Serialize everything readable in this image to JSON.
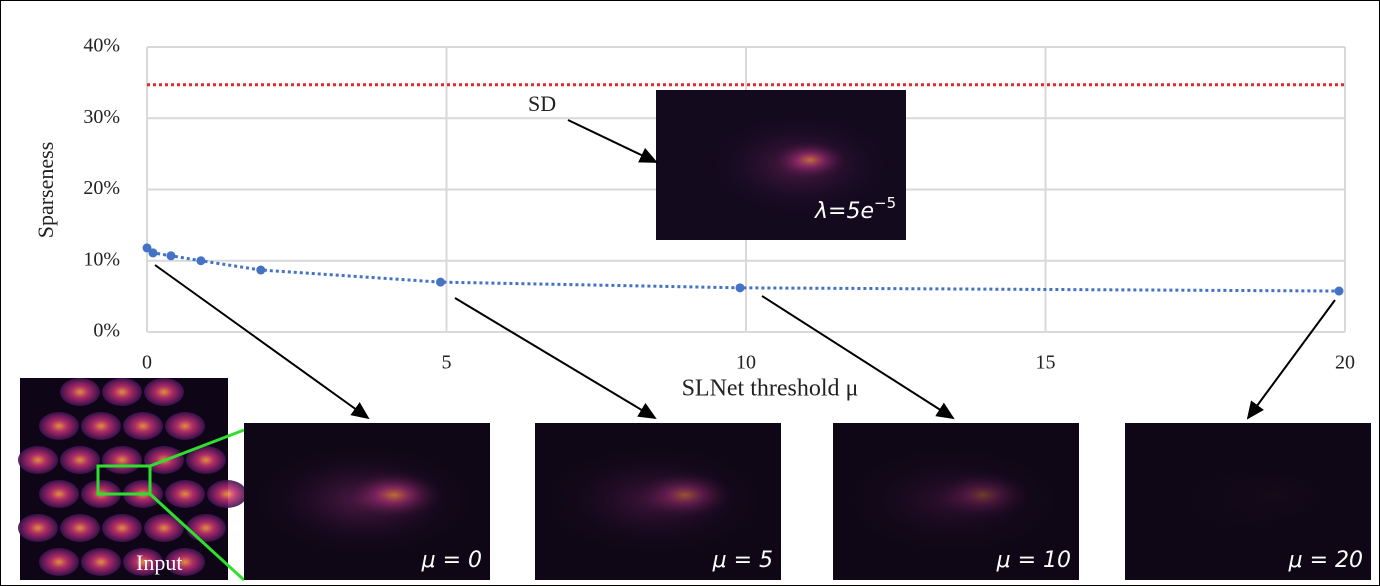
{
  "chart_data": {
    "type": "scatter",
    "x_label": "SLNet threshold μ",
    "y_label": "Sparseness",
    "xlim": [
      0,
      20
    ],
    "xticks": [
      0,
      5,
      10,
      15,
      20
    ],
    "ylim": [
      0,
      40
    ],
    "yticks": [
      {
        "value": 0,
        "label": "0%"
      },
      {
        "value": 10,
        "label": "10%"
      },
      {
        "value": 20,
        "label": "20%"
      },
      {
        "value": 30,
        "label": "30%"
      },
      {
        "value": 40,
        "label": "40%"
      }
    ],
    "grid": true,
    "series": [
      {
        "color": "#4472c4",
        "x": [
          0,
          0.1,
          0.4,
          0.9,
          1.9,
          4.9,
          9.9,
          19.9
        ],
        "values": [
          11.8,
          11.1,
          10.7,
          10.0,
          8.7,
          7.0,
          6.2,
          5.75
        ]
      }
    ],
    "reference_line": {
      "label": "SD",
      "value": 34.7,
      "color": "#e8262b"
    },
    "sd_image": {
      "lambda_text": "λ=5e",
      "lambda_exponent": "−5"
    },
    "input_label": "Input",
    "images": [
      {
        "label": "μ = 0"
      },
      {
        "label": "μ = 5"
      },
      {
        "label": "μ = 10"
      },
      {
        "label": "μ = 20"
      }
    ]
  }
}
